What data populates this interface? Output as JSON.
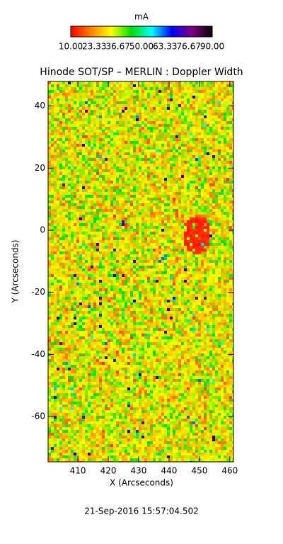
{
  "chart_data": {
    "type": "image",
    "title": "Hinode SOT/SP – MERLIN : Doppler Width",
    "colorbar_title": "mA",
    "colormap": [
      "#ff0000",
      "#ff8000",
      "#ffff00",
      "#00e000",
      "#00ffff",
      "#0000ff",
      "#800080",
      "#000000"
    ],
    "clim": [
      10,
      90
    ],
    "cticks": [
      {
        "value": 10,
        "label": "10.00"
      },
      {
        "value": 23.33,
        "label": "23.33"
      },
      {
        "value": 36.67,
        "label": "36.67"
      },
      {
        "value": 50,
        "label": "50.00"
      },
      {
        "value": 63.33,
        "label": "63.33"
      },
      {
        "value": 76.67,
        "label": "76.67"
      },
      {
        "value": 90,
        "label": "90.00"
      }
    ],
    "x_label": "X (Arcseconds)",
    "y_label": "Y (Arcseconds)",
    "xlim": [
      400.2,
      461.2
    ],
    "ylim": [
      -74.6,
      47.9
    ],
    "xticks": [
      410,
      420,
      430,
      440,
      450,
      460
    ],
    "yticks": [
      -60,
      -40,
      -20,
      0,
      20,
      40
    ],
    "timestamp": "21-Sep-2016 15:57:04.502"
  }
}
